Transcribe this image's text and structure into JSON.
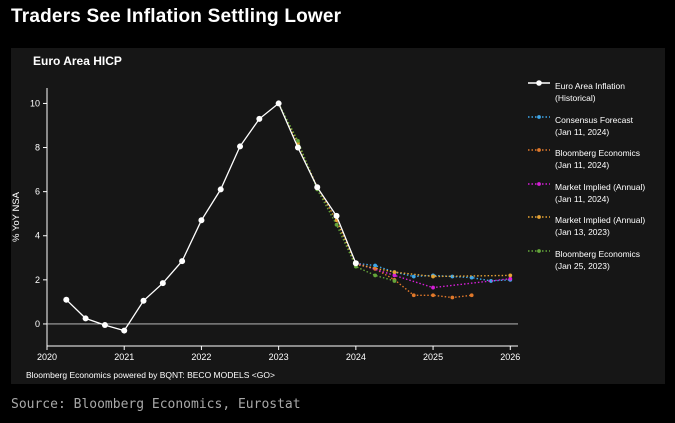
{
  "headline": "Traders See Inflation Settling Lower",
  "source": "Source: Bloomberg Economics, Eurostat",
  "colors": {
    "panel_bg": "#161616",
    "axis": "#ffffff",
    "historical": "#ffffff",
    "consensus": "#3ea6e8",
    "bloomberg_2024": "#e0782a",
    "market_2024": "#d41fd6",
    "market_2023": "#e6a334",
    "bloomberg_2023": "#64a53a"
  },
  "chart_data": {
    "type": "line",
    "title": "Euro Area HICP",
    "ylabel": "% YoY NSA",
    "xlabel": "",
    "xlim": [
      2020,
      2026.1
    ],
    "ylim": [
      -1,
      10.7
    ],
    "x_ticks": [
      "2020",
      "2021",
      "2022",
      "2023",
      "2024",
      "2025",
      "2026"
    ],
    "y_ticks": [
      "0",
      "2",
      "4",
      "6",
      "8",
      "10"
    ],
    "credit": "Bloomberg Economics powered by BQNT: BECO MODELS <GO>",
    "series": [
      {
        "name": "Euro Area Inflation (Historical)",
        "legend": [
          "Euro Area Inflation",
          "(Historical)"
        ],
        "color_key": "historical",
        "style": "solid",
        "points": [
          [
            2020.25,
            1.1
          ],
          [
            2020.5,
            0.25
          ],
          [
            2020.75,
            -0.05
          ],
          [
            2021.0,
            -0.3
          ],
          [
            2021.25,
            1.05
          ],
          [
            2021.5,
            1.85
          ],
          [
            2021.75,
            2.85
          ],
          [
            2022.0,
            4.7
          ],
          [
            2022.25,
            6.1
          ],
          [
            2022.5,
            8.05
          ],
          [
            2022.75,
            9.3
          ],
          [
            2023.0,
            10.0
          ],
          [
            2023.25,
            8.0
          ],
          [
            2023.5,
            6.2
          ],
          [
            2023.75,
            4.9
          ],
          [
            2024.0,
            2.75
          ]
        ]
      },
      {
        "name": "Consensus Forecast (Jan 11, 2024)",
        "legend": [
          "Consensus Forecast",
          "(Jan 11, 2024)"
        ],
        "color_key": "consensus",
        "style": "dotted",
        "points": [
          [
            2024.0,
            2.75
          ],
          [
            2024.25,
            2.65
          ],
          [
            2024.5,
            2.35
          ],
          [
            2024.75,
            2.15
          ],
          [
            2025.0,
            2.2
          ],
          [
            2025.25,
            2.15
          ],
          [
            2025.5,
            2.1
          ],
          [
            2025.75,
            1.95
          ],
          [
            2026.0,
            2.0
          ]
        ]
      },
      {
        "name": "Bloomberg Economics (Jan 11, 2024)",
        "legend": [
          "Bloomberg Economics",
          "(Jan 11, 2024)"
        ],
        "color_key": "bloomberg_2024",
        "style": "dotted",
        "points": [
          [
            2024.0,
            2.75
          ],
          [
            2024.25,
            2.5
          ],
          [
            2024.5,
            2.0
          ],
          [
            2024.75,
            1.3
          ],
          [
            2025.0,
            1.3
          ],
          [
            2025.25,
            1.2
          ],
          [
            2025.5,
            1.3
          ]
        ]
      },
      {
        "name": "Market Implied (Annual) (Jan 11, 2024)",
        "legend": [
          "Market Implied (Annual)",
          "(Jan 11, 2024)"
        ],
        "color_key": "market_2024",
        "style": "dotted",
        "points": [
          [
            2024.0,
            2.75
          ],
          [
            2024.5,
            2.2
          ],
          [
            2025.0,
            1.65
          ],
          [
            2026.0,
            2.05
          ]
        ]
      },
      {
        "name": "Market Implied (Annual) (Jan 13, 2023)",
        "legend": [
          "Market Implied (Annual)",
          "(Jan 13, 2023)"
        ],
        "color_key": "market_2023",
        "style": "dotted",
        "points": [
          [
            2023.0,
            10.0
          ],
          [
            2023.25,
            8.2
          ],
          [
            2023.5,
            6.2
          ],
          [
            2023.75,
            4.7
          ],
          [
            2024.0,
            2.7
          ],
          [
            2024.5,
            2.35
          ],
          [
            2025.0,
            2.15
          ],
          [
            2026.0,
            2.2
          ]
        ]
      },
      {
        "name": "Bloomberg Economics (Jan 25, 2023)",
        "legend": [
          "Bloomberg Economics",
          "(Jan 25, 2023)"
        ],
        "color_key": "bloomberg_2023",
        "style": "dotted",
        "points": [
          [
            2023.0,
            10.0
          ],
          [
            2023.25,
            8.3
          ],
          [
            2023.5,
            6.1
          ],
          [
            2023.75,
            4.5
          ],
          [
            2024.0,
            2.6
          ],
          [
            2024.25,
            2.2
          ],
          [
            2024.5,
            1.95
          ]
        ]
      }
    ]
  }
}
